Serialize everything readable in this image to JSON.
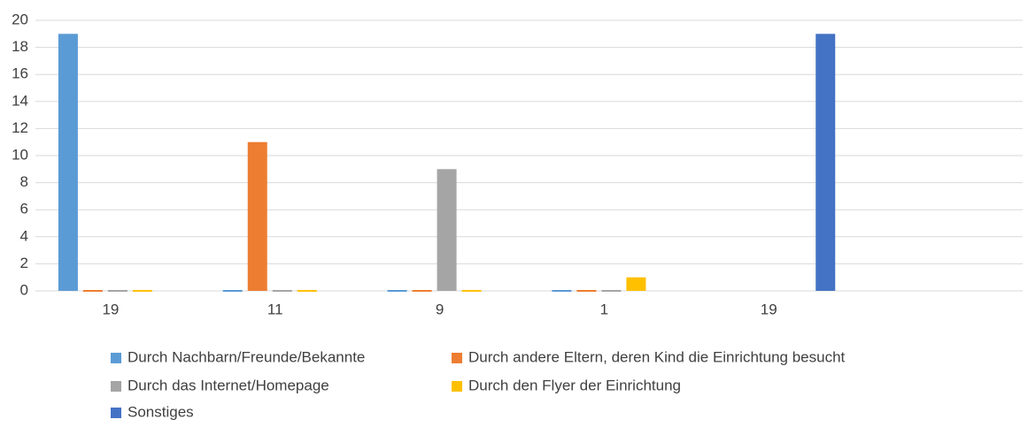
{
  "chart_data": {
    "type": "bar",
    "categories": [
      "19",
      "11",
      "9",
      "1",
      "19",
      null
    ],
    "series": [
      {
        "name": "Durch Nachbarn/Freunde/Bekannte",
        "color": "#5b9bd5",
        "values": [
          19,
          0,
          0,
          0,
          null,
          null
        ]
      },
      {
        "name": "Durch andere Eltern, deren Kind die Einrichtung besucht",
        "color": "#ed7d31",
        "values": [
          0,
          11,
          0,
          0,
          null,
          null
        ]
      },
      {
        "name": "Durch das Internet/Homepage",
        "color": "#a5a5a5",
        "values": [
          0,
          0,
          9,
          0,
          null,
          null
        ]
      },
      {
        "name": "Durch den Flyer der Einrichtung",
        "color": "#ffc000",
        "values": [
          0,
          0,
          0,
          1,
          null,
          null
        ]
      },
      {
        "name": "Sonstiges",
        "color": "#4472c4",
        "values": [
          null,
          null,
          null,
          null,
          19,
          null
        ]
      }
    ],
    "ylim": [
      0,
      20
    ],
    "yticks": [
      0,
      2,
      4,
      6,
      8,
      10,
      12,
      14,
      16,
      18,
      20
    ],
    "grid": true
  }
}
